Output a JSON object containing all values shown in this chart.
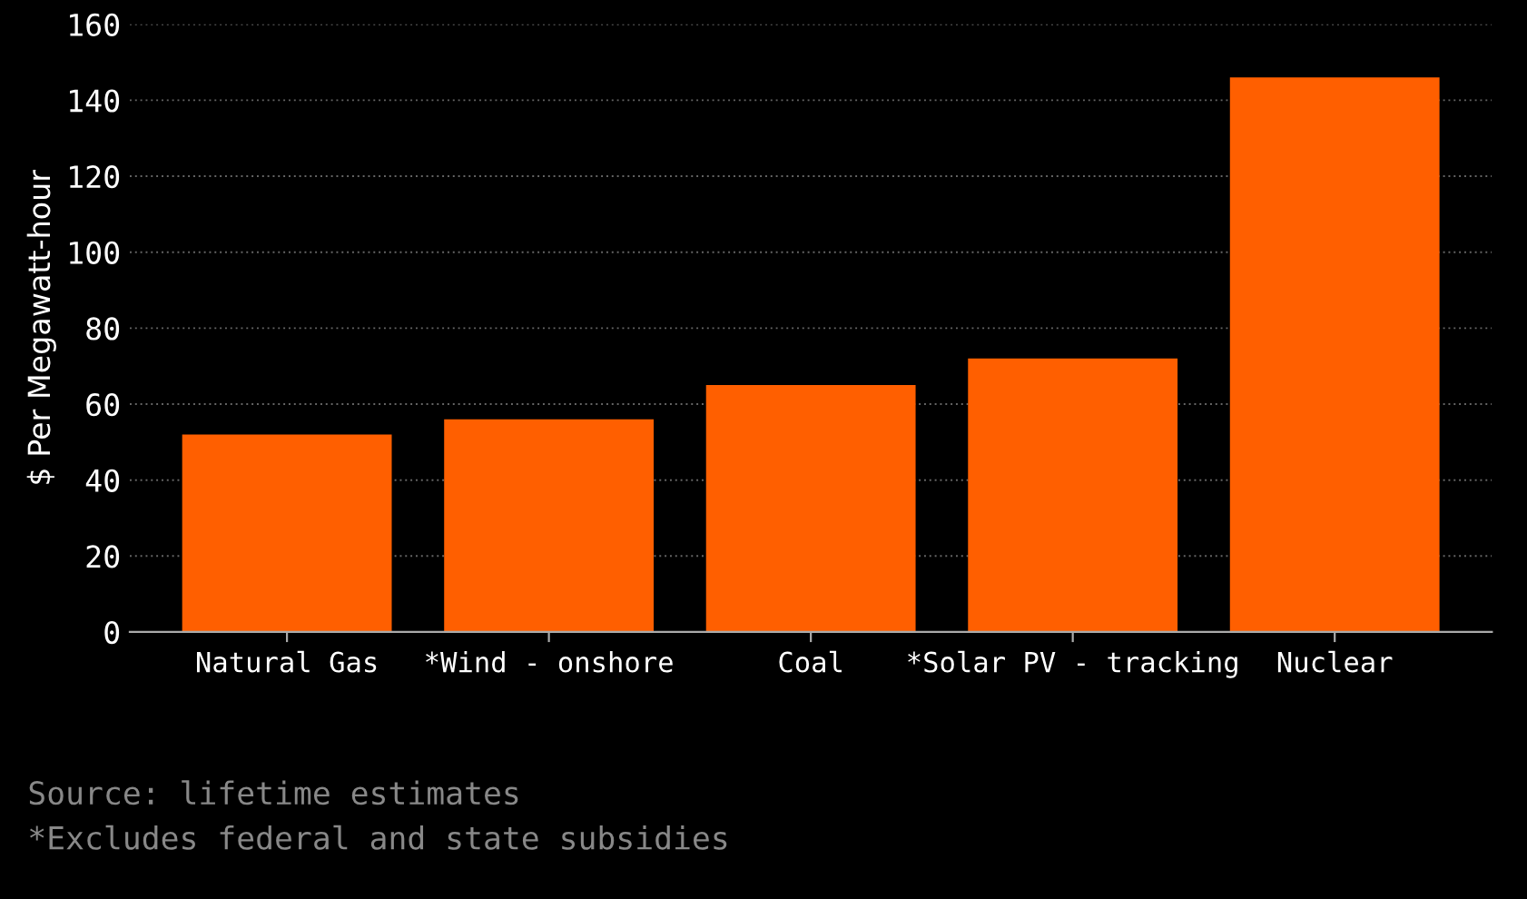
{
  "chart_data": {
    "type": "bar",
    "ylabel": "$ Per Megawatt-hour",
    "categories": [
      "Natural Gas",
      "*Wind - onshore",
      "Coal",
      "*Solar PV - tracking",
      "Nuclear"
    ],
    "values": [
      52,
      56,
      65,
      72,
      146
    ],
    "color": "#ff5f00",
    "ylim": [
      0,
      160
    ],
    "yticks": [
      0,
      20,
      40,
      60,
      80,
      100,
      120,
      140,
      160
    ],
    "grid": "y",
    "annotations": [
      "Source: lifetime estimates",
      "*Excludes federal and state subsidies"
    ]
  }
}
